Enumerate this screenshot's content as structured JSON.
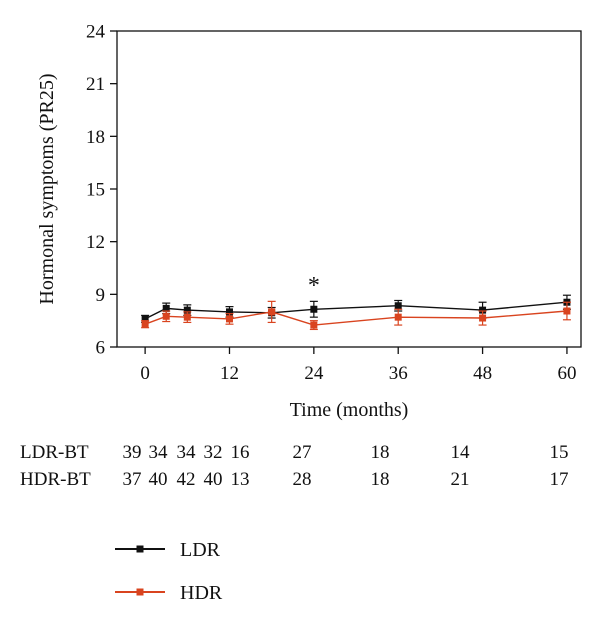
{
  "chart_data": {
    "type": "line",
    "xlabel": "Time (months)",
    "ylabel": "Hormonal symptoms (PR25)",
    "xlim": [
      -4,
      62
    ],
    "ylim": [
      6,
      24
    ],
    "xticks": [
      0,
      12,
      24,
      36,
      48,
      60
    ],
    "yticks": [
      6,
      9,
      12,
      15,
      18,
      21,
      24
    ],
    "annotations": [
      {
        "text": "*",
        "x": 24,
        "y": 9.6
      }
    ],
    "series": [
      {
        "name": "LDR",
        "color": "#111111",
        "x": [
          0,
          3,
          6,
          12,
          18,
          24,
          36,
          48,
          60
        ],
        "y": [
          7.6,
          8.2,
          8.1,
          8.0,
          7.95,
          8.15,
          8.35,
          8.1,
          8.55
        ],
        "err": [
          0.2,
          0.3,
          0.3,
          0.3,
          0.3,
          0.45,
          0.3,
          0.45,
          0.4
        ]
      },
      {
        "name": "HDR",
        "color": "#d9441f",
        "x": [
          0,
          3,
          6,
          12,
          18,
          24,
          36,
          48,
          60
        ],
        "y": [
          7.3,
          7.75,
          7.7,
          7.6,
          8.0,
          7.25,
          7.7,
          7.65,
          8.05
        ],
        "err": [
          0.2,
          0.3,
          0.3,
          0.3,
          0.6,
          0.25,
          0.45,
          0.4,
          0.5
        ]
      }
    ],
    "at_risk_table": {
      "rows": [
        {
          "label": "LDR-BT",
          "values": [
            "39",
            "34",
            "34",
            "32",
            "16",
            "27",
            "18",
            "14",
            "15"
          ]
        },
        {
          "label": "HDR-BT",
          "values": [
            "37",
            "40",
            "42",
            "40",
            "13",
            "28",
            "18",
            "21",
            "17"
          ]
        }
      ]
    },
    "legend": {
      "placement": "bottom-left",
      "entries": [
        {
          "label": "LDR",
          "color": "#111111"
        },
        {
          "label": "HDR",
          "color": "#d9441f"
        }
      ]
    }
  }
}
